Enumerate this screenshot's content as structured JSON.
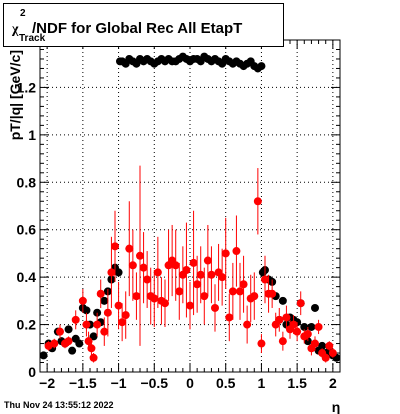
{
  "chart_data": {
    "type": "scatter",
    "title": "/NDF for Global Rec All EtapT",
    "title_symbol": "χ",
    "title_superscript": "2",
    "title_subscript": "Track",
    "xlabel": "η",
    "ylabel": "pT/|q| [GeV/c]",
    "xlim": [
      -2.1,
      2.1
    ],
    "ylim": [
      0,
      1.4
    ],
    "x_ticks": [
      "−2",
      "−1.5",
      "−1",
      "−0.5",
      "0",
      "0.5",
      "1",
      "1.5",
      "2"
    ],
    "x_tick_values": [
      -2,
      -1.5,
      -1,
      -0.5,
      0,
      0.5,
      1,
      1.5,
      2
    ],
    "y_ticks": [
      "0",
      "0.2",
      "0.4",
      "0.6",
      "0.8",
      "1",
      "1.2"
    ],
    "y_tick_values": [
      0,
      0.2,
      0.4,
      0.6,
      0.8,
      1.0,
      1.2
    ],
    "grid": true,
    "colors": {
      "series_black": "#000000",
      "series_red": "#ff0000"
    },
    "series": [
      {
        "color": "black",
        "points": [
          [
            -2.05,
            0.07
          ],
          [
            -1.98,
            0.12
          ],
          [
            -1.93,
            0.1
          ],
          [
            -1.85,
            0.17
          ],
          [
            -1.8,
            0.13
          ],
          [
            -1.75,
            0.12
          ],
          [
            -1.7,
            0.18
          ],
          [
            -1.65,
            0.09
          ],
          [
            -1.6,
            0.14
          ],
          [
            -1.55,
            0.12
          ],
          [
            -1.5,
            0.27
          ],
          [
            -1.45,
            0.26
          ],
          [
            -1.4,
            0.2
          ],
          [
            -1.35,
            0.15
          ],
          [
            -1.3,
            0.25
          ],
          [
            -1.25,
            0.21
          ],
          [
            -1.2,
            0.3
          ],
          [
            -1.15,
            0.34
          ],
          [
            -1.1,
            0.39
          ],
          [
            -1.05,
            0.44
          ],
          [
            -1.0,
            0.42
          ],
          [
            -0.98,
            1.31
          ],
          [
            -0.95,
            1.31
          ],
          [
            -0.9,
            1.3
          ],
          [
            -0.85,
            1.32
          ],
          [
            -0.8,
            1.31
          ],
          [
            -0.75,
            1.3
          ],
          [
            -0.7,
            1.32
          ],
          [
            -0.65,
            1.31
          ],
          [
            -0.6,
            1.32
          ],
          [
            -0.55,
            1.31
          ],
          [
            -0.5,
            1.3
          ],
          [
            -0.45,
            1.31
          ],
          [
            -0.4,
            1.32
          ],
          [
            -0.35,
            1.31
          ],
          [
            -0.3,
            1.32
          ],
          [
            -0.25,
            1.31
          ],
          [
            -0.2,
            1.31
          ],
          [
            -0.15,
            1.32
          ],
          [
            -0.1,
            1.33
          ],
          [
            -0.05,
            1.32
          ],
          [
            0.0,
            1.31
          ],
          [
            0.05,
            1.32
          ],
          [
            0.1,
            1.32
          ],
          [
            0.15,
            1.31
          ],
          [
            0.2,
            1.33
          ],
          [
            0.25,
            1.32
          ],
          [
            0.3,
            1.31
          ],
          [
            0.35,
            1.32
          ],
          [
            0.4,
            1.31
          ],
          [
            0.45,
            1.3
          ],
          [
            0.5,
            1.32
          ],
          [
            0.55,
            1.31
          ],
          [
            0.6,
            1.3
          ],
          [
            0.65,
            1.31
          ],
          [
            0.7,
            1.3
          ],
          [
            0.75,
            1.29
          ],
          [
            0.8,
            1.3
          ],
          [
            0.85,
            1.31
          ],
          [
            0.9,
            1.29
          ],
          [
            0.95,
            1.28
          ],
          [
            1.0,
            1.29
          ],
          [
            1.02,
            0.42
          ],
          [
            1.05,
            0.43
          ],
          [
            1.1,
            0.39
          ],
          [
            1.15,
            0.38
          ],
          [
            1.2,
            0.32
          ],
          [
            1.25,
            0.22
          ],
          [
            1.3,
            0.3
          ],
          [
            1.35,
            0.2
          ],
          [
            1.4,
            0.23
          ],
          [
            1.45,
            0.22
          ],
          [
            1.5,
            0.21
          ],
          [
            1.55,
            0.29
          ],
          [
            1.6,
            0.19
          ],
          [
            1.65,
            0.13
          ],
          [
            1.7,
            0.19
          ],
          [
            1.75,
            0.27
          ],
          [
            1.8,
            0.09
          ],
          [
            1.85,
            0.11
          ],
          [
            1.9,
            0.08
          ],
          [
            1.95,
            0.09
          ],
          [
            2.0,
            0.07
          ],
          [
            2.05,
            0.06
          ]
        ]
      },
      {
        "color": "red",
        "points": [
          [
            -1.98,
            0.11,
            0.02
          ],
          [
            -1.9,
            0.12,
            0.02
          ],
          [
            -1.82,
            0.17,
            0.03
          ],
          [
            -1.75,
            0.12,
            0.02
          ],
          [
            -1.7,
            0.13,
            0.02
          ],
          [
            -1.6,
            0.22,
            0.04
          ],
          [
            -1.5,
            0.3,
            0.05
          ],
          [
            -1.45,
            0.2,
            0.05
          ],
          [
            -1.42,
            0.13,
            0.04
          ],
          [
            -1.38,
            0.1,
            0.03
          ],
          [
            -1.35,
            0.06,
            0.02
          ],
          [
            -1.3,
            0.2,
            0.05
          ],
          [
            -1.25,
            0.33,
            0.06
          ],
          [
            -1.2,
            0.17,
            0.06
          ],
          [
            -1.15,
            0.25,
            0.1
          ],
          [
            -1.1,
            0.42,
            0.15
          ],
          [
            -1.05,
            0.53,
            0.15
          ],
          [
            -1.0,
            0.28,
            0.1
          ],
          [
            -0.95,
            0.21,
            0.08
          ],
          [
            -0.9,
            0.24,
            0.1
          ],
          [
            -0.85,
            0.52,
            0.2
          ],
          [
            -0.8,
            0.45,
            0.15
          ],
          [
            -0.75,
            0.32,
            0.1
          ],
          [
            -0.7,
            0.49,
            0.38
          ],
          [
            -0.65,
            0.44,
            0.15
          ],
          [
            -0.6,
            0.39,
            0.12
          ],
          [
            -0.55,
            0.32,
            0.12
          ],
          [
            -0.5,
            0.31,
            0.12
          ],
          [
            -0.45,
            0.42,
            0.15
          ],
          [
            -0.4,
            0.3,
            0.1
          ],
          [
            -0.35,
            0.29,
            0.1
          ],
          [
            -0.3,
            0.45,
            0.15
          ],
          [
            -0.25,
            0.47,
            0.15
          ],
          [
            -0.2,
            0.45,
            0.15
          ],
          [
            -0.15,
            0.34,
            0.12
          ],
          [
            -0.1,
            0.41,
            0.12
          ],
          [
            -0.05,
            0.43,
            0.2
          ],
          [
            0.0,
            0.28,
            0.1
          ],
          [
            0.05,
            0.46,
            0.22
          ],
          [
            0.1,
            0.37,
            0.12
          ],
          [
            0.15,
            0.41,
            0.12
          ],
          [
            0.2,
            0.32,
            0.12
          ],
          [
            0.25,
            0.47,
            0.15
          ],
          [
            0.3,
            0.41,
            0.12
          ],
          [
            0.35,
            0.27,
            0.1
          ],
          [
            0.4,
            0.42,
            0.12
          ],
          [
            0.45,
            0.4,
            0.12
          ],
          [
            0.5,
            0.5,
            0.15
          ],
          [
            0.55,
            0.23,
            0.1
          ],
          [
            0.6,
            0.34,
            0.12
          ],
          [
            0.65,
            0.51,
            0.15
          ],
          [
            0.7,
            0.34,
            0.12
          ],
          [
            0.75,
            0.37,
            0.12
          ],
          [
            0.8,
            0.2,
            0.08
          ],
          [
            0.85,
            0.31,
            0.1
          ],
          [
            0.9,
            0.32,
            0.1
          ],
          [
            0.95,
            0.72,
            0.14
          ],
          [
            1.0,
            0.12,
            0.04
          ],
          [
            1.05,
            0.39,
            0.1
          ],
          [
            1.1,
            0.33,
            0.08
          ],
          [
            1.15,
            0.33,
            0.06
          ],
          [
            1.2,
            0.2,
            0.05
          ],
          [
            1.25,
            0.22,
            0.05
          ],
          [
            1.3,
            0.13,
            0.04
          ],
          [
            1.35,
            0.23,
            0.05
          ],
          [
            1.4,
            0.18,
            0.04
          ],
          [
            1.45,
            0.2,
            0.04
          ],
          [
            1.5,
            0.17,
            0.04
          ],
          [
            1.55,
            0.29,
            0.05
          ],
          [
            1.6,
            0.15,
            0.03
          ],
          [
            1.65,
            0.16,
            0.03
          ],
          [
            1.7,
            0.1,
            0.03
          ],
          [
            1.75,
            0.12,
            0.03
          ],
          [
            1.8,
            0.19,
            0.03
          ],
          [
            1.85,
            0.08,
            0.02
          ],
          [
            1.9,
            0.06,
            0.02
          ],
          [
            1.95,
            0.11,
            0.02
          ],
          [
            2.0,
            0.08,
            0.02
          ]
        ]
      }
    ]
  },
  "footer": {
    "timestamp": "Thu Nov 24 13:55:12 2022"
  }
}
